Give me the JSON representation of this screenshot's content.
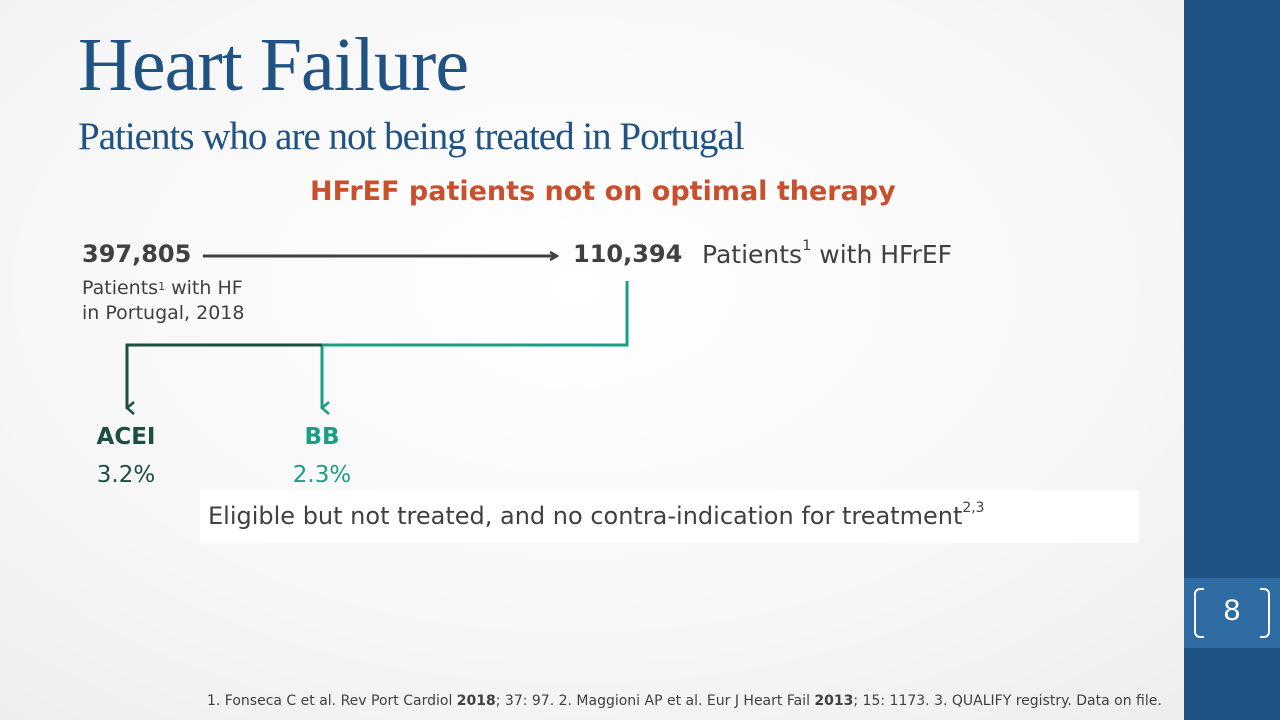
{
  "title": "Heart Failure",
  "subtitle": "Patients who are not being treated in Portugal",
  "heading": "HFrEF patients not on optimal therapy",
  "total": {
    "value": "397,805",
    "label_line1_pre": "Patients",
    "label_line1_sup": "1",
    "label_line1_post": " with HF",
    "label_line2": "in Portugal, 2018"
  },
  "hfref": {
    "value": "110,394",
    "label_pre": "Patients",
    "label_sup": "1",
    "label_post": " with HFrEF"
  },
  "branches": [
    {
      "name": "ACEI",
      "pct": "3.2%",
      "color": "#1e4d42"
    },
    {
      "name": "BB",
      "pct": "2.3%",
      "color": "#19a084"
    }
  ],
  "note": {
    "text": "Eligible but not treated, and no contra-indication for treatment",
    "sup": "2,3"
  },
  "footnote": {
    "p1": "1. Fonseca C et al. Rev Port Cardiol ",
    "y1": "2018",
    "p2": "; 37: 97. 2. Maggioni AP et al. Eur J Heart Fail ",
    "y2": "2013",
    "p3": "; 15: 1173. 3. QUALIFY registry. Data on file."
  },
  "page_number": "8",
  "colors": {
    "title": "#205284",
    "heading": "#c8502c",
    "sidebar": "#205284",
    "arrow": "#404040"
  }
}
